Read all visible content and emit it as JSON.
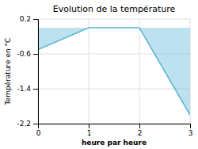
{
  "chart_data": {
    "type": "area",
    "title": "Evolution de la température",
    "xlabel": "heure par heure",
    "ylabel": "Température en °C",
    "x": [
      0,
      1,
      2,
      3
    ],
    "values": [
      -0.5,
      0.0,
      0.0,
      -2.0
    ],
    "color": "#5ab4d4",
    "xlim": [
      0,
      3
    ],
    "ylim": [
      -2.2,
      0.2
    ],
    "xticks": [
      0,
      1,
      2,
      3
    ],
    "yticks": [
      0.2,
      -0.6,
      -1.4,
      -2.2
    ],
    "grid": true
  }
}
